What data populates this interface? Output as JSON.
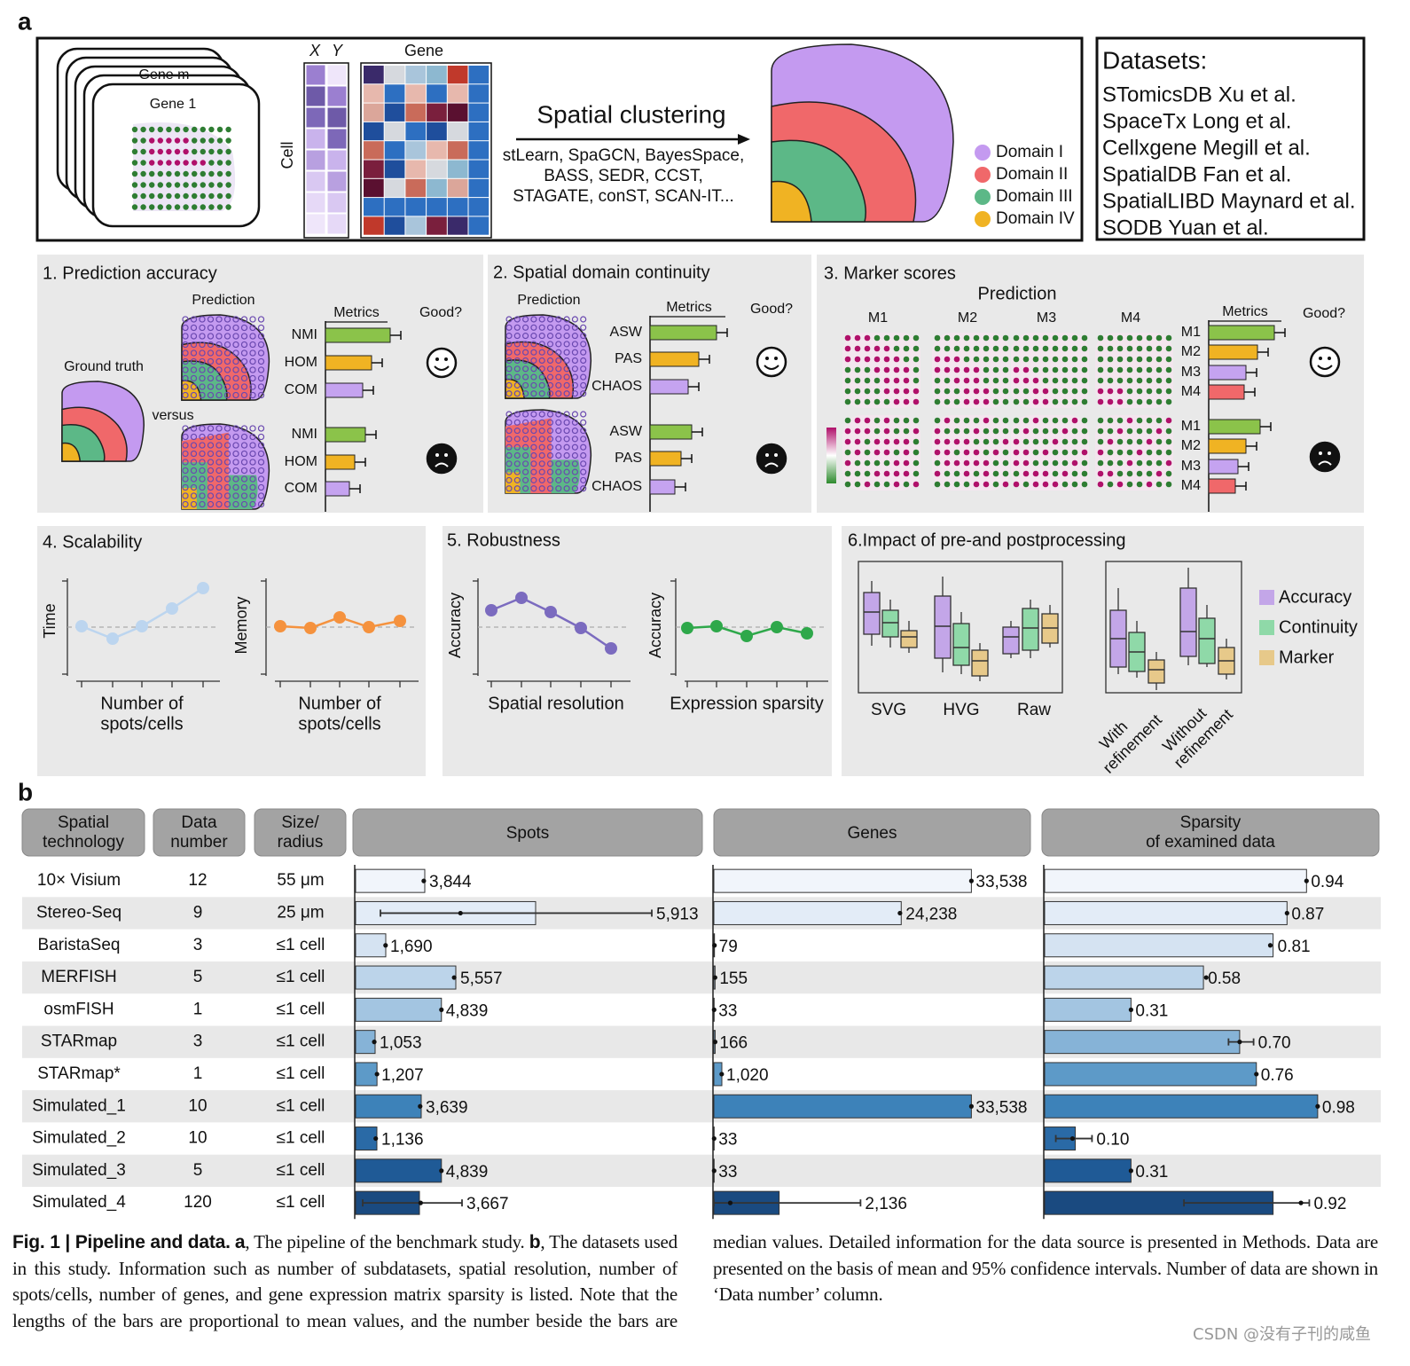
{
  "panel_a": {
    "label": "a",
    "pipeline": {
      "gene_m": "Gene m",
      "gene_1": "Gene 1",
      "x": "X",
      "y": "Y",
      "gene": "Gene",
      "cell": "Cell",
      "arrow_title": "Spatial clustering",
      "methods": [
        "stLearn, SpaGCN, BayesSpace,",
        "BASS, SEDR, CCST,",
        "STAGATE, conST, SCAN-IT..."
      ],
      "domains": [
        "Domain I",
        "Domain II",
        "Domain III",
        "Domain IV"
      ]
    },
    "datasets": {
      "title": "Datasets:",
      "items": [
        "STomicsDB Xu et al.",
        "SpaceTx Long et al.",
        "Cellxgene Megill et al.",
        "SpatialDB Fan et al.",
        "SpatialLIBD Maynard et al.",
        "SODB Yuan et al."
      ]
    },
    "accuracy": {
      "title": "1. Prediction accuracy",
      "prediction": "Prediction",
      "ground_truth": "Ground truth",
      "versus": "versus",
      "metrics": "Metrics",
      "good": "Good?",
      "metric_names": [
        "NMI",
        "HOM",
        "COM"
      ]
    },
    "continuity": {
      "title": "2. Spatial domain continuity",
      "prediction": "Prediction",
      "metrics": "Metrics",
      "good": "Good?",
      "metric_names": [
        "ASW",
        "PAS",
        "CHAOS"
      ]
    },
    "marker": {
      "title": "3. Marker scores",
      "prediction": "Prediction",
      "methods": [
        "M1",
        "M2",
        "M3",
        "M4"
      ],
      "metrics": "Metrics",
      "good": "Good?"
    },
    "scalability": {
      "title": "4. Scalability",
      "time": "Time",
      "memory": "Memory",
      "xlabel": [
        "Number of",
        "spots/cells"
      ]
    },
    "robustness": {
      "title": "5. Robustness",
      "ylabel": "Accuracy",
      "xlabels": [
        "Spatial resolution",
        "Expression sparsity"
      ]
    },
    "processing": {
      "title": "6.Impact of pre-and postprocessing",
      "groups": [
        "SVG",
        "HVG",
        "Raw"
      ],
      "refinement": [
        [
          "With",
          "refinement"
        ],
        [
          "Without",
          "refinement"
        ]
      ],
      "legend": [
        "Accuracy",
        "Continuity",
        "Marker"
      ]
    }
  },
  "panel_b": {
    "label": "b",
    "headers": [
      [
        "Spatial",
        "technology"
      ],
      [
        "Data",
        "number"
      ],
      [
        "Size/",
        "radius"
      ],
      [
        "Spots"
      ],
      [
        "Genes"
      ],
      [
        "Sparsity",
        "of examined data"
      ]
    ],
    "rows": [
      {
        "technology": "10× Visium",
        "data_number": 12,
        "size": "55 μm"
      },
      {
        "technology": "Stereo-Seq",
        "data_number": 9,
        "size": "25 μm"
      },
      {
        "technology": "BaristaSeq",
        "data_number": 3,
        "size": "≤1 cell"
      },
      {
        "technology": "MERFISH",
        "data_number": 5,
        "size": "≤1 cell"
      },
      {
        "technology": "osmFISH",
        "data_number": 1,
        "size": "≤1 cell"
      },
      {
        "technology": "STARmap",
        "data_number": 3,
        "size": "≤1 cell"
      },
      {
        "technology": "STARmap*",
        "data_number": 1,
        "size": "≤1 cell"
      },
      {
        "technology": "Simulated_1",
        "data_number": 10,
        "size": "≤1 cell"
      },
      {
        "technology": "Simulated_2",
        "data_number": 10,
        "size": "≤1 cell"
      },
      {
        "technology": "Simulated_3",
        "data_number": 5,
        "size": "≤1 cell"
      },
      {
        "technology": "Simulated_4",
        "data_number": 120,
        "size": "≤1 cell"
      }
    ],
    "bar_colors": [
      "#f1f5fb",
      "#e3ecf7",
      "#d5e3f2",
      "#bcd4ea",
      "#a3c5e1",
      "#86b3d7",
      "#5d9ac8",
      "#3d82b9",
      "#2a6aa6",
      "#1f5a96",
      "#1a4a80"
    ],
    "spots": {
      "xlim": [
        0,
        19500
      ],
      "means": [
        3900,
        10150,
        1700,
        5650,
        4839,
        1100,
        1207,
        3700,
        1200,
        4839,
        3600
      ],
      "medians": [
        3844,
        5913,
        1690,
        5557,
        4839,
        1053,
        1207,
        3639,
        1136,
        4839,
        3667
      ],
      "labels": [
        "3,844",
        "5,913",
        "1,690",
        "5,557",
        "4,839",
        "1,053",
        "1,207",
        "3,639",
        "1,136",
        "4,839",
        "3,667"
      ],
      "ci": [
        null,
        [
          1400,
          16700
        ],
        null,
        null,
        null,
        null,
        null,
        null,
        null,
        null,
        [
          400,
          6000
        ]
      ]
    },
    "genes": {
      "xlim": [
        0,
        41000
      ],
      "means": [
        33538,
        24400,
        79,
        155,
        33,
        166,
        1040,
        33538,
        33,
        33,
        8500
      ],
      "medians": [
        33538,
        24238,
        79,
        155,
        33,
        166,
        1020,
        33538,
        33,
        33,
        2136
      ],
      "labels": [
        "33,538",
        "24,238",
        "79",
        "155",
        "33",
        "166",
        "1,020",
        "33,538",
        "33",
        "33",
        "2,136"
      ],
      "ci": [
        null,
        null,
        null,
        null,
        null,
        null,
        null,
        null,
        null,
        null,
        [
          0,
          19100
        ]
      ]
    },
    "sparsity": {
      "xlim": [
        0,
        1.2
      ],
      "means": [
        0.94,
        0.87,
        0.82,
        0.57,
        0.31,
        0.7,
        0.76,
        0.98,
        0.11,
        0.31,
        0.82
      ],
      "medians": [
        0.94,
        0.87,
        0.81,
        0.58,
        0.31,
        0.7,
        0.76,
        0.98,
        0.1,
        0.31,
        0.92
      ],
      "labels": [
        "0.94",
        "0.87",
        "0.81",
        "0.58",
        "0.31",
        "0.70",
        "0.76",
        "0.98",
        "0.10",
        "0.31",
        "0.92"
      ],
      "ci": [
        null,
        null,
        null,
        null,
        null,
        [
          0.66,
          0.75
        ],
        null,
        null,
        [
          0.04,
          0.17
        ],
        null,
        [
          0.5,
          0.95
        ]
      ]
    }
  },
  "caption": {
    "label": "Fig. 1 | Pipeline and data.",
    "a": "a",
    "a_text": ", The pipeline of the benchmark study.",
    "b": "b",
    "b_text": ", The datasets used in this study. Information such as number of subdatasets, spatial resolution, number of spots/cells, number of genes, and gene expression matrix sparsity is listed. Note that the lengths of the bars are proportional to mean values, and the number beside the bars are median values. Detailed information for the data source is presented in Methods. Data are presented on the basis of mean and 95% confidence intervals. Number of data are shown in ‘Data number’ column."
  },
  "watermark": "CSDN @没有子刊的咸鱼"
}
